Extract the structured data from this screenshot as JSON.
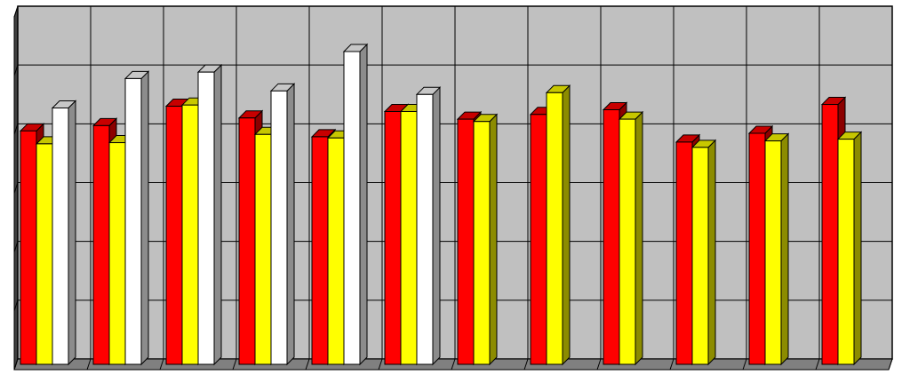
{
  "chart_data": {
    "type": "bar",
    "style": "3d-clustered-column",
    "title": "",
    "xlabel": "",
    "ylabel": "",
    "grid": true,
    "legend": "none",
    "ylim": [
      0,
      6
    ],
    "categories": [
      "",
      "",
      "",
      "",
      "",
      "",
      "",
      "",
      "",
      "",
      "",
      ""
    ],
    "series": [
      {
        "color": "#ff0000",
        "values": [
          3.97,
          4.06,
          4.39,
          4.19,
          3.87,
          4.3,
          4.17,
          4.25,
          4.33,
          3.78,
          3.93,
          4.42
        ]
      },
      {
        "color": "#ffff00",
        "values": [
          3.75,
          3.77,
          4.41,
          3.91,
          3.85,
          4.3,
          4.13,
          4.62,
          4.17,
          3.69,
          3.8,
          3.83
        ]
      },
      {
        "color": "#ffffff",
        "values": [
          4.36,
          4.86,
          4.97,
          4.65,
          5.32,
          4.59,
          null,
          null,
          null,
          null,
          null,
          null
        ]
      }
    ]
  },
  "colors": {
    "plot_background": "#c0c0c0",
    "gridline": "#000000",
    "floor": "#808080",
    "wall_side": "#404040"
  }
}
